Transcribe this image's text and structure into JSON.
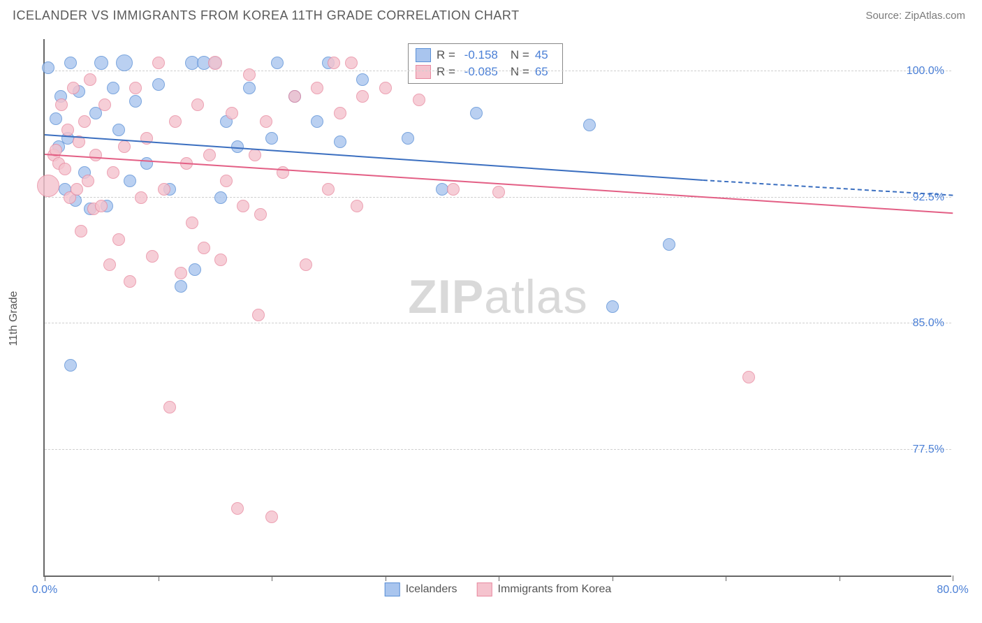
{
  "header": {
    "title": "ICELANDER VS IMMIGRANTS FROM KOREA 11TH GRADE CORRELATION CHART",
    "source": "Source: ZipAtlas.com"
  },
  "chart": {
    "type": "scatter",
    "y_axis_label": "11th Grade",
    "watermark": {
      "bold": "ZIP",
      "rest": "atlas"
    },
    "background_color": "#ffffff",
    "grid_color": "#cfcfcf",
    "axis_color": "#666666",
    "tick_label_color": "#4a7fd6",
    "xlim": [
      0,
      80
    ],
    "ylim": [
      70,
      102
    ],
    "x_ticks": [
      0,
      10,
      20,
      30,
      40,
      50,
      60,
      70,
      80
    ],
    "x_tick_labels": {
      "0": "0.0%",
      "80": "80.0%"
    },
    "y_ticks": [
      77.5,
      85.0,
      92.5,
      100.0
    ],
    "y_tick_labels": [
      "77.5%",
      "85.0%",
      "92.5%",
      "100.0%"
    ],
    "series": [
      {
        "name": "Icelanders",
        "fill": "#a9c5ee",
        "stroke": "#5a8fd6",
        "line_color": "#3b6fc0",
        "R": "-0.158",
        "N": "45",
        "regression": {
          "x1": 0,
          "y1": 96.2,
          "x2": 58,
          "y2": 93.5,
          "dash_to_x": 80,
          "dash_to_y": 92.6
        },
        "points": [
          {
            "x": 0.3,
            "y": 100.2,
            "r": 9
          },
          {
            "x": 1,
            "y": 97.2,
            "r": 9
          },
          {
            "x": 1.2,
            "y": 95.5,
            "r": 9
          },
          {
            "x": 1.4,
            "y": 98.5,
            "r": 9
          },
          {
            "x": 1.8,
            "y": 93.0,
            "r": 9
          },
          {
            "x": 2,
            "y": 96.0,
            "r": 9
          },
          {
            "x": 2.3,
            "y": 100.5,
            "r": 9
          },
          {
            "x": 2.7,
            "y": 92.3,
            "r": 9
          },
          {
            "x": 3,
            "y": 98.8,
            "r": 9
          },
          {
            "x": 3.5,
            "y": 94.0,
            "r": 9
          },
          {
            "x": 4,
            "y": 91.8,
            "r": 9
          },
          {
            "x": 4.5,
            "y": 97.5,
            "r": 9
          },
          {
            "x": 5,
            "y": 100.5,
            "r": 10
          },
          {
            "x": 5.5,
            "y": 92.0,
            "r": 9
          },
          {
            "x": 6,
            "y": 99.0,
            "r": 9
          },
          {
            "x": 6.5,
            "y": 96.5,
            "r": 9
          },
          {
            "x": 7,
            "y": 100.5,
            "r": 12
          },
          {
            "x": 7.5,
            "y": 93.5,
            "r": 9
          },
          {
            "x": 8,
            "y": 98.2,
            "r": 9
          },
          {
            "x": 9,
            "y": 94.5,
            "r": 9
          },
          {
            "x": 10,
            "y": 99.2,
            "r": 9
          },
          {
            "x": 11,
            "y": 93.0,
            "r": 9
          },
          {
            "x": 12,
            "y": 87.2,
            "r": 9
          },
          {
            "x": 13,
            "y": 100.5,
            "r": 10
          },
          {
            "x": 13.2,
            "y": 88.2,
            "r": 9
          },
          {
            "x": 14,
            "y": 100.5,
            "r": 10
          },
          {
            "x": 15,
            "y": 100.5,
            "r": 9
          },
          {
            "x": 15.5,
            "y": 92.5,
            "r": 9
          },
          {
            "x": 16,
            "y": 97.0,
            "r": 9
          },
          {
            "x": 17,
            "y": 95.5,
            "r": 9
          },
          {
            "x": 18,
            "y": 99.0,
            "r": 9
          },
          {
            "x": 20,
            "y": 96.0,
            "r": 9
          },
          {
            "x": 20.5,
            "y": 100.5,
            "r": 9
          },
          {
            "x": 22,
            "y": 98.5,
            "r": 9
          },
          {
            "x": 24,
            "y": 97.0,
            "r": 9
          },
          {
            "x": 25,
            "y": 100.5,
            "r": 9
          },
          {
            "x": 26,
            "y": 95.8,
            "r": 9
          },
          {
            "x": 28,
            "y": 99.5,
            "r": 9
          },
          {
            "x": 32,
            "y": 96.0,
            "r": 9
          },
          {
            "x": 35,
            "y": 93.0,
            "r": 9
          },
          {
            "x": 38,
            "y": 97.5,
            "r": 9
          },
          {
            "x": 48,
            "y": 96.8,
            "r": 9
          },
          {
            "x": 50,
            "y": 86.0,
            "r": 9
          },
          {
            "x": 55,
            "y": 89.7,
            "r": 9
          },
          {
            "x": 2.3,
            "y": 82.5,
            "r": 9
          }
        ]
      },
      {
        "name": "Immigrants from Korea",
        "fill": "#f5c3ce",
        "stroke": "#e88aa0",
        "line_color": "#e35f85",
        "R": "-0.085",
        "N": "65",
        "regression": {
          "x1": 0,
          "y1": 95.0,
          "x2": 80,
          "y2": 91.5
        },
        "points": [
          {
            "x": 0.3,
            "y": 93.2,
            "r": 16
          },
          {
            "x": 0.8,
            "y": 95.0,
            "r": 9
          },
          {
            "x": 1.2,
            "y": 94.5,
            "r": 9
          },
          {
            "x": 1,
            "y": 95.3,
            "r": 9
          },
          {
            "x": 1.5,
            "y": 98.0,
            "r": 9
          },
          {
            "x": 1.8,
            "y": 94.2,
            "r": 9
          },
          {
            "x": 2,
            "y": 96.5,
            "r": 9
          },
          {
            "x": 2.2,
            "y": 92.5,
            "r": 9
          },
          {
            "x": 2.5,
            "y": 99.0,
            "r": 9
          },
          {
            "x": 2.8,
            "y": 93.0,
            "r": 9
          },
          {
            "x": 3,
            "y": 95.8,
            "r": 9
          },
          {
            "x": 3.2,
            "y": 90.5,
            "r": 9
          },
          {
            "x": 3.5,
            "y": 97.0,
            "r": 9
          },
          {
            "x": 3.8,
            "y": 93.5,
            "r": 9
          },
          {
            "x": 4,
            "y": 99.5,
            "r": 9
          },
          {
            "x": 4.3,
            "y": 91.8,
            "r": 9
          },
          {
            "x": 4.5,
            "y": 95.0,
            "r": 9
          },
          {
            "x": 5,
            "y": 92.0,
            "r": 9
          },
          {
            "x": 5.3,
            "y": 98.0,
            "r": 9
          },
          {
            "x": 5.7,
            "y": 88.5,
            "r": 9
          },
          {
            "x": 6,
            "y": 94.0,
            "r": 9
          },
          {
            "x": 6.5,
            "y": 90.0,
            "r": 9
          },
          {
            "x": 7,
            "y": 95.5,
            "r": 9
          },
          {
            "x": 7.5,
            "y": 87.5,
            "r": 9
          },
          {
            "x": 8,
            "y": 99.0,
            "r": 9
          },
          {
            "x": 8.5,
            "y": 92.5,
            "r": 9
          },
          {
            "x": 9,
            "y": 96.0,
            "r": 9
          },
          {
            "x": 9.5,
            "y": 89.0,
            "r": 9
          },
          {
            "x": 10,
            "y": 100.5,
            "r": 9
          },
          {
            "x": 10.5,
            "y": 93.0,
            "r": 9
          },
          {
            "x": 11,
            "y": 80.0,
            "r": 9
          },
          {
            "x": 11.5,
            "y": 97.0,
            "r": 9
          },
          {
            "x": 12,
            "y": 88.0,
            "r": 9
          },
          {
            "x": 12.5,
            "y": 94.5,
            "r": 9
          },
          {
            "x": 13,
            "y": 91.0,
            "r": 9
          },
          {
            "x": 13.5,
            "y": 98.0,
            "r": 9
          },
          {
            "x": 14,
            "y": 89.5,
            "r": 9
          },
          {
            "x": 14.5,
            "y": 95.0,
            "r": 9
          },
          {
            "x": 15,
            "y": 100.5,
            "r": 10
          },
          {
            "x": 15.5,
            "y": 88.8,
            "r": 9
          },
          {
            "x": 16,
            "y": 93.5,
            "r": 9
          },
          {
            "x": 16.5,
            "y": 97.5,
            "r": 9
          },
          {
            "x": 17,
            "y": 74.0,
            "r": 9
          },
          {
            "x": 17.5,
            "y": 92.0,
            "r": 9
          },
          {
            "x": 18,
            "y": 99.8,
            "r": 9
          },
          {
            "x": 18.5,
            "y": 95.0,
            "r": 9
          },
          {
            "x": 18.8,
            "y": 85.5,
            "r": 9
          },
          {
            "x": 19,
            "y": 91.5,
            "r": 9
          },
          {
            "x": 19.5,
            "y": 97.0,
            "r": 9
          },
          {
            "x": 20,
            "y": 73.5,
            "r": 9
          },
          {
            "x": 21,
            "y": 94.0,
            "r": 9
          },
          {
            "x": 22,
            "y": 98.5,
            "r": 9
          },
          {
            "x": 23,
            "y": 88.5,
            "r": 9
          },
          {
            "x": 24,
            "y": 99.0,
            "r": 9
          },
          {
            "x": 25,
            "y": 93.0,
            "r": 9
          },
          {
            "x": 25.5,
            "y": 100.5,
            "r": 9
          },
          {
            "x": 26,
            "y": 97.5,
            "r": 9
          },
          {
            "x": 27,
            "y": 100.5,
            "r": 9
          },
          {
            "x": 27.5,
            "y": 92.0,
            "r": 9
          },
          {
            "x": 28,
            "y": 98.5,
            "r": 9
          },
          {
            "x": 30,
            "y": 99.0,
            "r": 9
          },
          {
            "x": 33,
            "y": 98.3,
            "r": 9
          },
          {
            "x": 36,
            "y": 93.0,
            "r": 9
          },
          {
            "x": 40,
            "y": 92.8,
            "r": 9
          },
          {
            "x": 62,
            "y": 81.8,
            "r": 9
          }
        ]
      }
    ],
    "legend_top": {
      "R_label": "R =",
      "N_label": "N ="
    },
    "legend_bottom": [
      {
        "label": "Icelanders",
        "fill": "#a9c5ee",
        "stroke": "#5a8fd6"
      },
      {
        "label": "Immigrants from Korea",
        "fill": "#f5c3ce",
        "stroke": "#e88aa0"
      }
    ]
  }
}
